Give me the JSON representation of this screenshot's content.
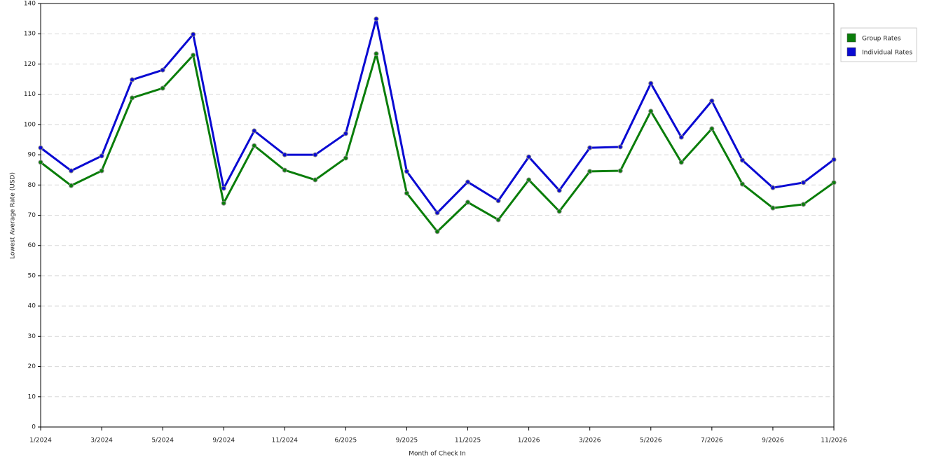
{
  "chart_data": {
    "type": "line",
    "x_label": "Month of Check In",
    "y_label": "Lowest Average Rate (USD)",
    "categories": [
      "1/2024",
      null,
      "3/2024",
      null,
      "5/2024",
      null,
      "9/2024",
      null,
      "11/2024",
      null,
      "6/2025",
      null,
      "9/2025",
      null,
      "11/2025",
      null,
      "1/2026",
      null,
      "3/2026",
      null,
      "5/2026",
      null,
      "7/2026",
      null,
      "9/2026",
      null,
      "11/2026"
    ],
    "series": [
      {
        "name": "Group Rates",
        "color": "#0a7d0a",
        "values": [
          87.5,
          79.8,
          84.7,
          108.8,
          112,
          122.9,
          74,
          93,
          84.9,
          81.7,
          88.9,
          123.4,
          77.3,
          64.6,
          74.3,
          68.5,
          81.7,
          71.3,
          84.5,
          84.7,
          104.4,
          87.5,
          98.6,
          80.3,
          72.4,
          73.6,
          80.8
        ]
      },
      {
        "name": "Individual Rates",
        "color": "#0a0ad2",
        "values": [
          92.3,
          84.7,
          89.6,
          114.8,
          118,
          129.8,
          78.9,
          97.9,
          90,
          90,
          97,
          134.9,
          84.5,
          70.8,
          81,
          74.8,
          89.3,
          78.2,
          92.3,
          92.6,
          113.6,
          95.8,
          107.8,
          88.2,
          79.1,
          80.8,
          88.4
        ]
      }
    ],
    "ylim": [
      0,
      140
    ],
    "yticks": [
      0,
      10,
      20,
      30,
      40,
      50,
      60,
      70,
      80,
      90,
      100,
      110,
      120,
      130,
      140
    ],
    "grid": true,
    "legend": "right"
  }
}
